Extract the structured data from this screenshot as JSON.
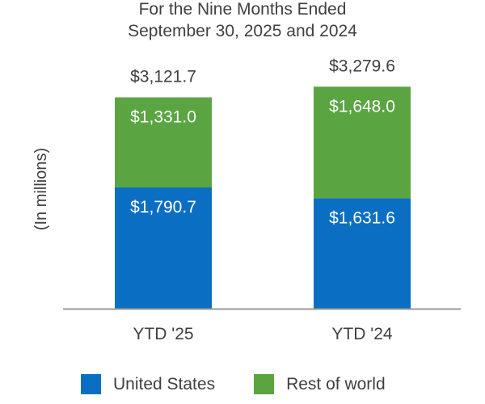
{
  "colors": {
    "united_states": "#0a6fc2",
    "rest_of_world": "#5aa541",
    "axis": "#999999",
    "text": "#404040",
    "label_inside": "#ffffff"
  },
  "chart_data": {
    "type": "bar",
    "stacked": true,
    "title": "For the Nine Months Ended",
    "subtitle": "September 30, 2025 and 2024",
    "ylabel": "(In millions)",
    "xlabel": "",
    "categories": [
      "YTD '25",
      "YTD '24"
    ],
    "series": [
      {
        "name": "United States",
        "values": [
          1790.7,
          1631.6
        ],
        "labels": [
          "$1,790.7",
          "$1,631.6"
        ],
        "color": "#0a6fc2"
      },
      {
        "name": "Rest of world",
        "values": [
          1331.0,
          1648.0
        ],
        "labels": [
          "$1,331.0",
          "$1,648.0"
        ],
        "color": "#5aa541"
      }
    ],
    "totals": [
      3121.7,
      3279.6
    ],
    "total_labels": [
      "$3,121.7",
      "$3,279.6"
    ],
    "ylim": [
      0,
      3500
    ],
    "grid": false,
    "legend_position": "bottom"
  }
}
